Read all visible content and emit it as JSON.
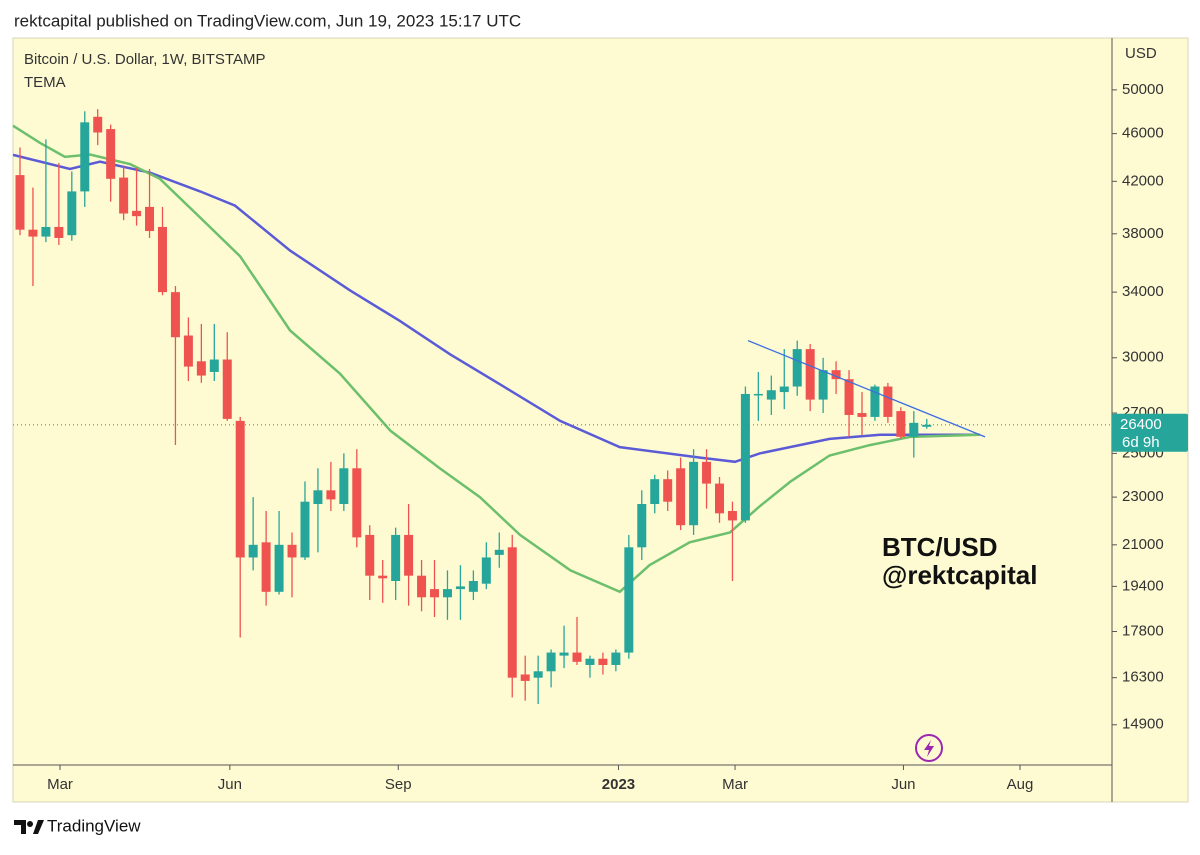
{
  "header": "rektcapital published on TradingView.com, Jun 19, 2023 15:17 UTC",
  "footer": "TradingView",
  "chart_data": {
    "type": "candlestick",
    "title": "Bitcoin / U.S. Dollar, 1W, BITSTAMP",
    "subtitle": "TEMA",
    "y_axis_label": "USD",
    "annotations": [
      "BTC/USD",
      "@rektcapital"
    ],
    "last_price": 26400,
    "countdown": "6d 9h",
    "log_scale": true,
    "up_color": "#26a69a",
    "down_color": "#ef5350",
    "open": [
      42500,
      38300,
      37800,
      38500,
      37900,
      41200,
      47500,
      46400,
      42300,
      39700,
      40000,
      38500,
      34000,
      31300,
      29800,
      29200,
      29900,
      26600,
      20500,
      21100,
      19200,
      21000,
      20500,
      22700,
      23300,
      22700,
      24300,
      21400,
      19800,
      19600,
      21400,
      19800,
      19300,
      19000,
      19300,
      19200,
      19500,
      20600,
      20900,
      16400,
      16300,
      16500,
      17000,
      17100,
      16700,
      16900,
      16700,
      17100,
      20900,
      22700,
      23800,
      24300,
      21800,
      24600,
      23600,
      22400,
      22000,
      28000,
      27700,
      28100,
      28400,
      30500,
      27700,
      29300,
      28800,
      27000,
      26800,
      28400,
      27100,
      25800,
      26300
    ],
    "high": [
      44800,
      41500,
      45500,
      43500,
      42800,
      48000,
      48200,
      46800,
      43300,
      43100,
      43000,
      40000,
      34400,
      32400,
      32000,
      32000,
      31500,
      26800,
      23000,
      22400,
      22400,
      21500,
      23700,
      24300,
      24600,
      25000,
      25200,
      21800,
      20400,
      21700,
      22700,
      20400,
      20400,
      20000,
      20200,
      20000,
      21100,
      21500,
      21400,
      17000,
      17000,
      17200,
      18000,
      18300,
      17000,
      17100,
      17200,
      21400,
      23300,
      24000,
      24200,
      24800,
      25200,
      25200,
      23900,
      22800,
      28400,
      29200,
      29000,
      30500,
      31000,
      30800,
      30000,
      29800,
      29300,
      28100,
      28500,
      28600,
      27300,
      27100,
      26700
    ],
    "low": [
      37900,
      34400,
      37400,
      37200,
      37500,
      40000,
      45000,
      40400,
      39000,
      38600,
      37700,
      33800,
      25400,
      28700,
      28600,
      28700,
      26600,
      17600,
      20000,
      18700,
      19100,
      19000,
      20400,
      20700,
      22400,
      22400,
      20900,
      18900,
      18800,
      18900,
      18700,
      18500,
      18300,
      18200,
      18200,
      18900,
      19300,
      20100,
      15700,
      15600,
      15500,
      16000,
      16600,
      16700,
      16300,
      16400,
      16500,
      16900,
      20400,
      22300,
      22400,
      21600,
      21400,
      22500,
      21900,
      19600,
      21900,
      26600,
      26900,
      27200,
      27900,
      27100,
      27000,
      28000,
      25800,
      25900,
      26600,
      26500,
      25700,
      24800,
      26200
    ],
    "close": [
      38300,
      37800,
      38500,
      37700,
      41200,
      47000,
      46100,
      42200,
      39500,
      39300,
      38200,
      34000,
      31200,
      29500,
      29000,
      29900,
      26700,
      20500,
      21000,
      19200,
      21000,
      20500,
      22800,
      23300,
      22900,
      24300,
      21300,
      19800,
      19700,
      21400,
      19800,
      19000,
      19000,
      19300,
      19400,
      19600,
      20500,
      20800,
      16300,
      16200,
      16500,
      17100,
      17100,
      16800,
      16900,
      16700,
      17100,
      20900,
      22700,
      23800,
      22800,
      21800,
      24600,
      23600,
      22300,
      22000,
      28000,
      28000,
      28200,
      28400,
      30500,
      27700,
      29300,
      28800,
      26900,
      26800,
      28400,
      26800,
      25800,
      26500,
      26400
    ],
    "lines": [
      {
        "color": "#5b5bd6",
        "x": [
          -0.54,
          3.86,
          6.18,
          10.04,
          13.9,
          16.6,
          20.85,
          25.5,
          29.3,
          33.2,
          37.1,
          41.7,
          46.3,
          52.5,
          55.2,
          57.1,
          62.5,
          66.4,
          74.1
        ],
        "values": [
          44170,
          43000,
          43600,
          42700,
          41200,
          40100,
          36800,
          34100,
          32200,
          30200,
          28500,
          26600,
          25300,
          24800,
          24600,
          25000,
          25700,
          25900,
          25900
        ]
      },
      {
        "color": "#6cbf6c",
        "x": [
          -0.54,
          1.54,
          3.47,
          5.41,
          8.49,
          10.8,
          13.9,
          17.0,
          20.85,
          24.7,
          28.6,
          32.4,
          35.5,
          38.6,
          42.5,
          46.3,
          48.6,
          51.7,
          54.8,
          57.1,
          59.5,
          62.5,
          65.6,
          68.7,
          74.1
        ],
        "values": [
          46700,
          45200,
          44000,
          44200,
          43400,
          42200,
          39200,
          36400,
          31600,
          29100,
          26100,
          24300,
          23000,
          21400,
          20000,
          19200,
          20200,
          21100,
          21500,
          22600,
          23700,
          24900,
          25400,
          25800,
          25900
        ]
      }
    ],
    "trendline": {
      "color": "#3d6fe0",
      "x": [
        56.2,
        74.5
      ],
      "values": [
        31000,
        25800
      ]
    },
    "xlim": [
      -0.54,
      84.3
    ],
    "xticks": [
      {
        "value": 3.09,
        "label": "Mar"
      },
      {
        "value": 16.2,
        "label": "Jun"
      },
      {
        "value": 29.2,
        "label": "Sep"
      },
      {
        "value": 46.2,
        "label": "2023"
      },
      {
        "value": 55.2,
        "label": "Mar"
      },
      {
        "value": 68.2,
        "label": "Jun"
      },
      {
        "value": 77.2,
        "label": "Aug"
      }
    ],
    "ylim": [
      13800,
      55200
    ],
    "yticks": [
      14900,
      16300,
      17800,
      19400,
      21000,
      23000,
      25000,
      27000,
      30000,
      34000,
      38000,
      42000,
      46000,
      50000
    ]
  }
}
